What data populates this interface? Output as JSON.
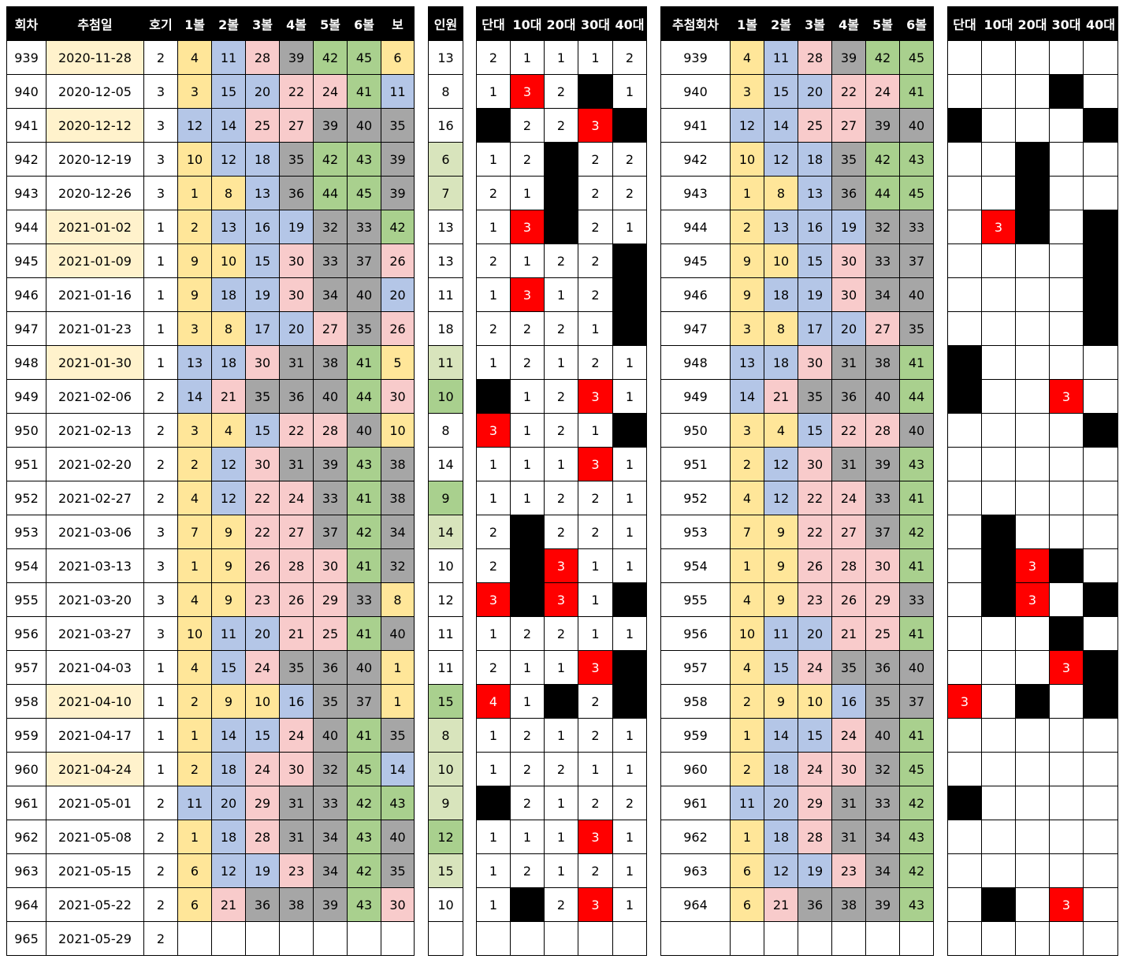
{
  "table": {
    "headers": {
      "main": [
        "회차",
        "추첨일",
        "호기",
        "1볼",
        "2볼",
        "3볼",
        "4볼",
        "5볼",
        "6볼",
        "보"
      ],
      "people": "인원",
      "decades": [
        "단대",
        "10대",
        "20대",
        "30대",
        "40대"
      ],
      "numbers": [
        "추첨회차",
        "1볼",
        "2볼",
        "3볼",
        "4볼",
        "5볼",
        "6볼"
      ]
    },
    "rows": [
      {
        "round": 939,
        "date": "2020-11-28",
        "date_color": "#fff2cc",
        "machine": 2,
        "balls": [
          4,
          11,
          28,
          39,
          42,
          45
        ],
        "bonus": 6,
        "people": 13,
        "decades": [
          2,
          1,
          1,
          1,
          2
        ],
        "pattern": [
          null,
          null,
          null,
          null,
          null
        ]
      },
      {
        "round": 940,
        "date": "2020-12-05",
        "machine": 3,
        "balls": [
          3,
          15,
          20,
          22,
          24,
          41
        ],
        "bonus": 11,
        "people": 8,
        "decades": [
          1,
          3,
          2,
          0,
          1
        ],
        "pattern": [
          null,
          null,
          null,
          0,
          null
        ]
      },
      {
        "round": 941,
        "date": "2020-12-12",
        "date_color": "#fff2cc",
        "machine": 3,
        "balls": [
          12,
          14,
          25,
          27,
          39,
          40
        ],
        "bonus": 35,
        "people": 16,
        "decades": [
          0,
          2,
          2,
          3,
          0
        ],
        "pattern": [
          0,
          null,
          null,
          null,
          0
        ]
      },
      {
        "round": 942,
        "date": "2020-12-19",
        "machine": 3,
        "balls": [
          10,
          12,
          18,
          35,
          42,
          43
        ],
        "bonus": 39,
        "people": 6,
        "people_color": "#d8e4bc",
        "decades": [
          1,
          2,
          0,
          2,
          2
        ],
        "pattern": [
          null,
          null,
          0,
          null,
          null
        ]
      },
      {
        "round": 943,
        "date": "2020-12-26",
        "machine": 3,
        "balls": [
          1,
          8,
          13,
          36,
          44,
          45
        ],
        "bonus": 39,
        "people": 7,
        "people_color": "#d8e4bc",
        "decades": [
          2,
          1,
          0,
          2,
          2
        ],
        "pattern": [
          null,
          null,
          0,
          null,
          null
        ]
      },
      {
        "round": 944,
        "date": "2021-01-02",
        "date_color": "#fff2cc",
        "machine": 1,
        "balls": [
          2,
          13,
          16,
          19,
          32,
          33
        ],
        "bonus": 42,
        "people": 13,
        "decades": [
          1,
          3,
          0,
          2,
          1
        ],
        "pattern": [
          null,
          3,
          0,
          null,
          0
        ]
      },
      {
        "round": 945,
        "date": "2021-01-09",
        "date_color": "#fff2cc",
        "machine": 1,
        "balls": [
          9,
          10,
          15,
          30,
          33,
          37
        ],
        "bonus": 26,
        "people": 13,
        "decades": [
          2,
          1,
          2,
          2,
          0
        ],
        "pattern": [
          null,
          null,
          null,
          null,
          0
        ]
      },
      {
        "round": 946,
        "date": "2021-01-16",
        "machine": 1,
        "balls": [
          9,
          18,
          19,
          30,
          34,
          40
        ],
        "bonus": 20,
        "people": 11,
        "decades": [
          1,
          3,
          1,
          2,
          0
        ],
        "pattern": [
          null,
          null,
          null,
          null,
          0
        ]
      },
      {
        "round": 947,
        "date": "2021-01-23",
        "machine": 1,
        "balls": [
          3,
          8,
          17,
          20,
          27,
          35
        ],
        "bonus": 26,
        "people": 18,
        "decades": [
          2,
          2,
          2,
          1,
          0
        ],
        "pattern": [
          null,
          null,
          null,
          null,
          0
        ]
      },
      {
        "round": 948,
        "date": "2021-01-30",
        "date_color": "#fff2cc",
        "machine": 1,
        "balls": [
          13,
          18,
          30,
          31,
          38,
          41
        ],
        "bonus": 5,
        "people": 11,
        "people_color": "#d8e4bc",
        "decades": [
          1,
          2,
          1,
          2,
          1
        ],
        "pattern": [
          0,
          null,
          null,
          null,
          null
        ]
      },
      {
        "round": 949,
        "date": "2021-02-06",
        "machine": 2,
        "balls": [
          14,
          21,
          35,
          36,
          40,
          44
        ],
        "bonus": 30,
        "people": 10,
        "people_color": "#a9d08e",
        "decades": [
          0,
          1,
          2,
          3,
          1
        ],
        "pattern": [
          0,
          null,
          null,
          3,
          null
        ]
      },
      {
        "round": 950,
        "date": "2021-02-13",
        "machine": 2,
        "balls": [
          3,
          4,
          15,
          22,
          28,
          40
        ],
        "bonus": 10,
        "people": 8,
        "decades": [
          3,
          1,
          2,
          1,
          0
        ],
        "pattern": [
          null,
          null,
          null,
          null,
          0
        ]
      },
      {
        "round": 951,
        "date": "2021-02-20",
        "machine": 2,
        "balls": [
          2,
          12,
          30,
          31,
          39,
          43
        ],
        "bonus": 38,
        "people": 14,
        "decades": [
          1,
          1,
          1,
          3,
          1
        ],
        "pattern": [
          null,
          null,
          null,
          null,
          null
        ]
      },
      {
        "round": 952,
        "date": "2021-02-27",
        "machine": 2,
        "balls": [
          4,
          12,
          22,
          24,
          33,
          41
        ],
        "bonus": 38,
        "people": 9,
        "people_color": "#a9d08e",
        "decades": [
          1,
          1,
          2,
          2,
          1
        ],
        "pattern": [
          null,
          null,
          null,
          null,
          null
        ]
      },
      {
        "round": 953,
        "date": "2021-03-06",
        "machine": 3,
        "balls": [
          7,
          9,
          22,
          27,
          37,
          42
        ],
        "bonus": 34,
        "people": 14,
        "people_color": "#d8e4bc",
        "decades": [
          2,
          0,
          2,
          2,
          1
        ],
        "pattern": [
          null,
          0,
          null,
          null,
          null
        ]
      },
      {
        "round": 954,
        "date": "2021-03-13",
        "machine": 3,
        "balls": [
          1,
          9,
          26,
          28,
          30,
          41
        ],
        "bonus": 32,
        "people": 10,
        "decades": [
          2,
          0,
          3,
          1,
          1
        ],
        "pattern": [
          null,
          0,
          3,
          0,
          null
        ]
      },
      {
        "round": 955,
        "date": "2021-03-20",
        "machine": 3,
        "balls": [
          4,
          9,
          23,
          26,
          29,
          33
        ],
        "bonus": 8,
        "people": 12,
        "decades": [
          3,
          0,
          3,
          1,
          0
        ],
        "pattern": [
          null,
          0,
          3,
          null,
          0
        ]
      },
      {
        "round": 956,
        "date": "2021-03-27",
        "machine": 3,
        "balls": [
          10,
          11,
          20,
          21,
          25,
          41
        ],
        "bonus": 40,
        "people": 11,
        "decades": [
          1,
          2,
          2,
          1,
          1
        ],
        "pattern": [
          null,
          null,
          null,
          0,
          null
        ]
      },
      {
        "round": 957,
        "date": "2021-04-03",
        "machine": 1,
        "balls": [
          4,
          15,
          24,
          35,
          36,
          40
        ],
        "bonus": 1,
        "people": 11,
        "decades": [
          2,
          1,
          1,
          3,
          0
        ],
        "pattern": [
          null,
          null,
          null,
          3,
          0
        ]
      },
      {
        "round": 958,
        "date": "2021-04-10",
        "date_color": "#fff2cc",
        "machine": 1,
        "balls": [
          2,
          9,
          10,
          16,
          35,
          37
        ],
        "bonus": 1,
        "people": 15,
        "people_color": "#a9d08e",
        "decades": [
          4,
          1,
          0,
          2,
          0
        ],
        "pattern": [
          3,
          null,
          0,
          null,
          0
        ]
      },
      {
        "round": 959,
        "date": "2021-04-17",
        "machine": 1,
        "balls": [
          1,
          14,
          15,
          24,
          40,
          41
        ],
        "bonus": 35,
        "people": 8,
        "people_color": "#d8e4bc",
        "decades": [
          1,
          2,
          1,
          2,
          1
        ],
        "pattern": [
          null,
          null,
          null,
          null,
          null
        ]
      },
      {
        "round": 960,
        "date": "2021-04-24",
        "date_color": "#fff2cc",
        "machine": 1,
        "balls": [
          2,
          18,
          24,
          30,
          32,
          45
        ],
        "bonus": 14,
        "people": 10,
        "people_color": "#d8e4bc",
        "decades": [
          1,
          2,
          2,
          1,
          1
        ],
        "pattern": [
          null,
          null,
          null,
          null,
          null
        ]
      },
      {
        "round": 961,
        "date": "2021-05-01",
        "machine": 2,
        "balls": [
          11,
          20,
          29,
          31,
          33,
          42
        ],
        "bonus": 43,
        "people": 9,
        "people_color": "#d8e4bc",
        "decades": [
          0,
          2,
          1,
          2,
          2
        ],
        "pattern": [
          0,
          null,
          null,
          null,
          null
        ]
      },
      {
        "round": 962,
        "date": "2021-05-08",
        "machine": 2,
        "balls": [
          1,
          18,
          28,
          31,
          34,
          43
        ],
        "bonus": 40,
        "people": 12,
        "people_color": "#a9d08e",
        "decades": [
          1,
          1,
          1,
          3,
          1
        ],
        "pattern": [
          null,
          null,
          null,
          null,
          null
        ]
      },
      {
        "round": 963,
        "date": "2021-05-15",
        "machine": 2,
        "balls": [
          6,
          12,
          19,
          23,
          34,
          42
        ],
        "bonus": 35,
        "people": 15,
        "people_color": "#d8e4bc",
        "decades": [
          1,
          2,
          1,
          2,
          1
        ],
        "pattern": [
          null,
          null,
          null,
          null,
          null
        ]
      },
      {
        "round": 964,
        "date": "2021-05-22",
        "machine": 2,
        "balls": [
          6,
          21,
          36,
          38,
          39,
          43
        ],
        "bonus": 30,
        "people": 10,
        "decades": [
          1,
          0,
          2,
          3,
          1
        ],
        "pattern": [
          null,
          0,
          null,
          3,
          null
        ]
      },
      {
        "round": 965,
        "date": "2021-05-29",
        "machine": 2
      }
    ]
  }
}
